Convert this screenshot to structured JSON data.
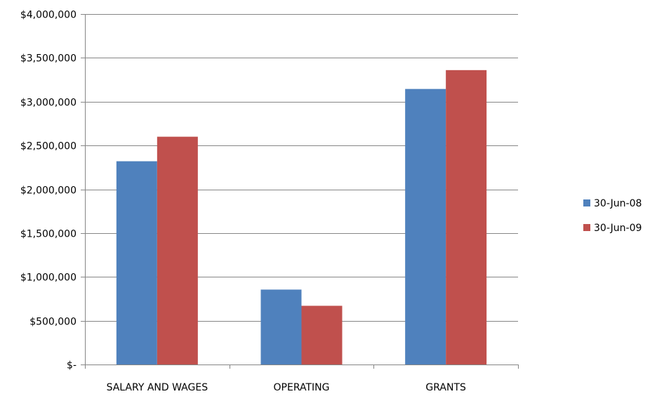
{
  "colors": {
    "series_1": "#4F81BD",
    "series_2": "#C0504D",
    "gridline": "#868686",
    "axis": "#868686",
    "text": "#000000",
    "background": "#FFFFFF"
  },
  "chart_data": {
    "type": "bar",
    "title": "",
    "xlabel": "",
    "ylabel": "",
    "categories": [
      "SALARY AND WAGES",
      "OPERATING",
      "GRANTS"
    ],
    "series": [
      {
        "name": "30-Jun-08",
        "values": [
          2320000,
          855000,
          3145000
        ]
      },
      {
        "name": "30-Jun-09",
        "values": [
          2600000,
          670000,
          3360000
        ]
      }
    ],
    "ylim": [
      0,
      4000000
    ],
    "y_ticks": [
      0,
      500000,
      1000000,
      1500000,
      2000000,
      2500000,
      3000000,
      3500000,
      4000000
    ],
    "y_tick_labels": [
      "$-",
      "$500,000",
      "$1,000,000",
      "$1,500,000",
      "$2,000,000",
      "$2,500,000",
      "$3,000,000",
      "$3,500,000",
      "$4,000,000"
    ],
    "grid": true,
    "legend_position": "right"
  }
}
